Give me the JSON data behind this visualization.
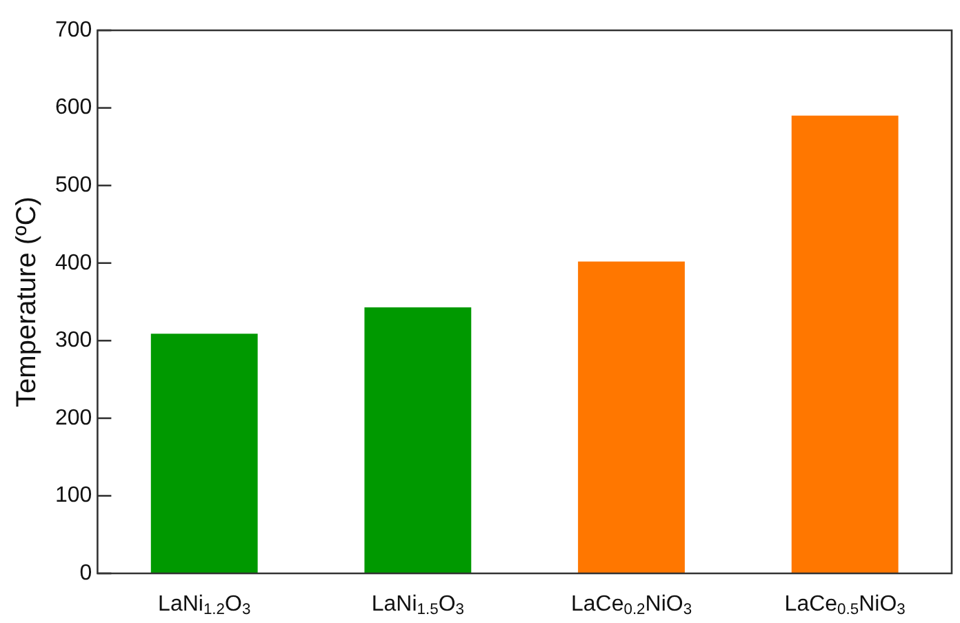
{
  "chart_data": {
    "type": "bar",
    "ylabel": "Temperature (ºC)",
    "categories": [
      "LaNi$_{1.2}$O$_{3}$",
      "LaNi$_{1.5}$O$_{3}$",
      "LaCe$_{0.2}$NiO$_{3}$",
      "LaCe$_{0.5}$NiO$_{3}$"
    ],
    "values": [
      309,
      343,
      402,
      590
    ],
    "colors": [
      "#009900",
      "#009900",
      "#ff7700",
      "#ff7700"
    ],
    "ylim": [
      0,
      700
    ],
    "yticks": [
      0,
      100,
      200,
      300,
      400,
      500,
      600,
      700
    ],
    "grid": false,
    "legend": false
  }
}
